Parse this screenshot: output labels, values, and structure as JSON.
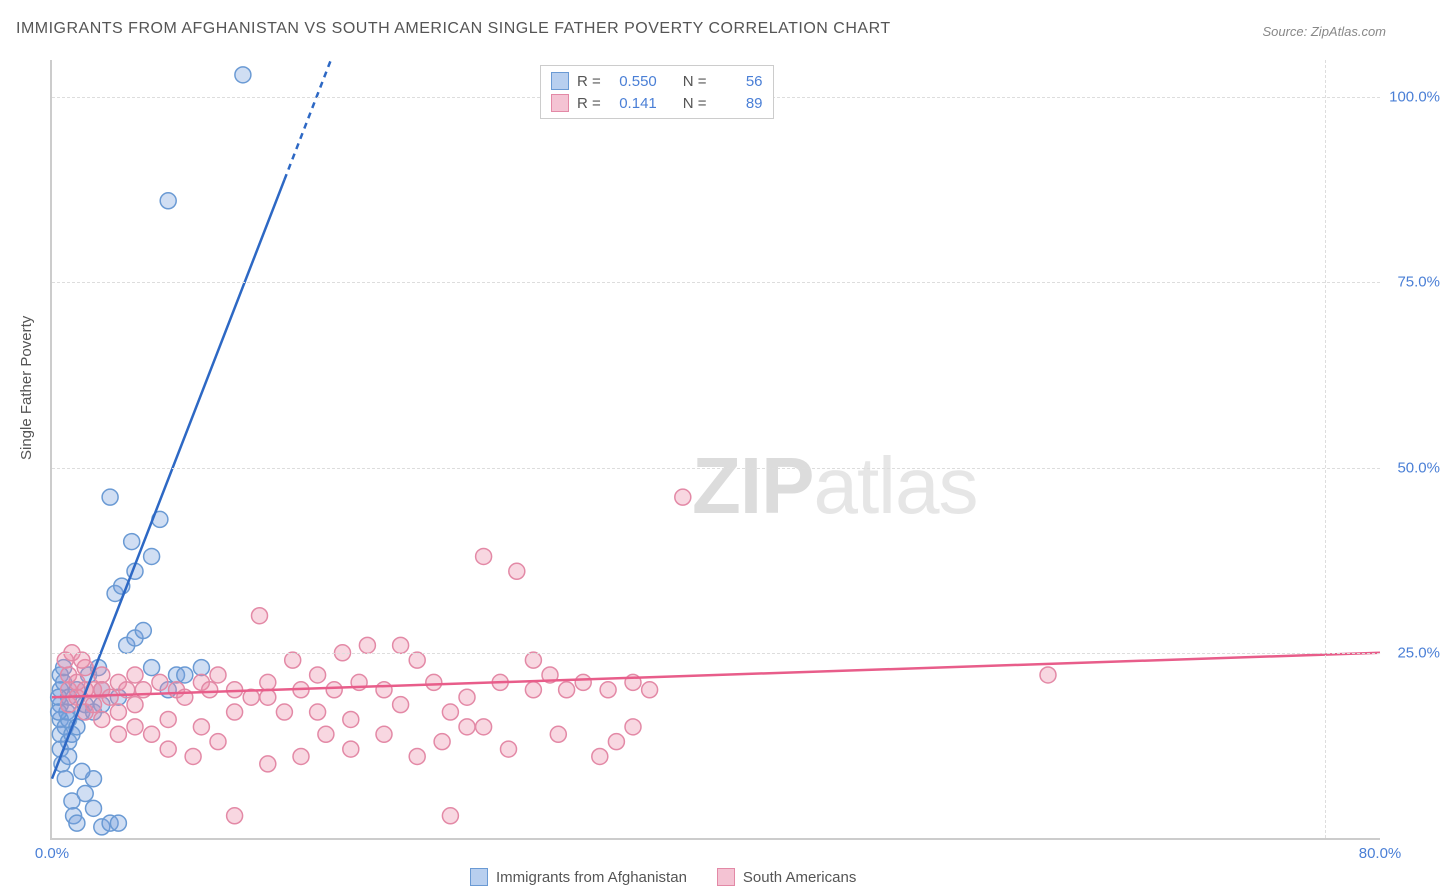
{
  "title": "IMMIGRANTS FROM AFGHANISTAN VS SOUTH AMERICAN SINGLE FATHER POVERTY CORRELATION CHART",
  "source": "Source: ZipAtlas.com",
  "y_axis_label": "Single Father Poverty",
  "watermark_a": "ZIP",
  "watermark_b": "atlas",
  "chart": {
    "type": "scatter",
    "xlim": [
      0,
      80
    ],
    "ylim": [
      0,
      105
    ],
    "x_ticks": [
      0,
      80
    ],
    "x_tick_labels": [
      "0.0%",
      "80.0%"
    ],
    "y_ticks": [
      25,
      50,
      75,
      100
    ],
    "y_tick_labels": [
      "25.0%",
      "50.0%",
      "75.0%",
      "100.0%"
    ],
    "grid_color": "#dddddd",
    "axis_color": "#cccccc",
    "background_color": "#ffffff",
    "tick_label_color": "#4a7fd6",
    "tick_fontsize": 15,
    "marker_radius": 8,
    "marker_stroke_width": 1.5,
    "line_width": 2.5
  },
  "series": [
    {
      "name": "Immigrants from Afghanistan",
      "fill_color": "rgba(120,160,220,0.35)",
      "stroke_color": "#6a9ad4",
      "line_color": "#2d68c4",
      "swatch_fill": "#b8cfef",
      "swatch_stroke": "#6a9ad4",
      "R": "0.550",
      "N": "56",
      "trend": {
        "x1": 0,
        "y1": 8,
        "x2": 16.8,
        "y2": 105,
        "dash_from_x": 14
      },
      "points": [
        [
          0.5,
          18
        ],
        [
          0.5,
          16
        ],
        [
          0.5,
          14
        ],
        [
          0.5,
          12
        ],
        [
          0.5,
          20
        ],
        [
          0.5,
          22
        ],
        [
          0.6,
          10
        ],
        [
          0.8,
          8
        ],
        [
          0.8,
          15
        ],
        [
          0.9,
          17
        ],
        [
          1,
          19
        ],
        [
          1,
          13
        ],
        [
          1,
          11
        ],
        [
          1,
          16
        ],
        [
          1.2,
          5
        ],
        [
          1.3,
          3
        ],
        [
          1.5,
          2
        ],
        [
          1.5,
          20
        ],
        [
          1.8,
          17
        ],
        [
          2,
          18
        ],
        [
          2,
          6
        ],
        [
          2.2,
          22
        ],
        [
          2.5,
          4
        ],
        [
          2.5,
          17
        ],
        [
          2.8,
          23
        ],
        [
          3,
          20
        ],
        [
          3,
          18
        ],
        [
          3,
          1.5
        ],
        [
          3.5,
          2
        ],
        [
          3.5,
          46
        ],
        [
          4,
          2
        ],
        [
          4,
          19
        ],
        [
          4.5,
          26
        ],
        [
          4.8,
          40
        ],
        [
          5,
          27
        ],
        [
          5,
          36
        ],
        [
          5.5,
          28
        ],
        [
          6,
          38
        ],
        [
          6,
          23
        ],
        [
          6.5,
          43
        ],
        [
          7,
          20
        ],
        [
          7,
          86
        ],
        [
          7.5,
          22
        ],
        [
          8,
          22
        ],
        [
          9,
          23
        ],
        [
          11.5,
          103
        ],
        [
          2.5,
          8
        ],
        [
          1.8,
          9
        ],
        [
          1.2,
          14
        ],
        [
          1.5,
          15
        ],
        [
          0.7,
          21
        ],
        [
          0.7,
          23
        ],
        [
          0.4,
          19
        ],
        [
          0.4,
          17
        ],
        [
          3.8,
          33
        ],
        [
          4.2,
          34
        ]
      ]
    },
    {
      "name": "South Americans",
      "fill_color": "rgba(235,140,170,0.35)",
      "stroke_color": "#e389a6",
      "line_color": "#e85d8a",
      "swatch_fill": "#f4c3d3",
      "swatch_stroke": "#e389a6",
      "R": "0.141",
      "N": "89",
      "trend": {
        "x1": 0,
        "y1": 19,
        "x2": 80,
        "y2": 25
      },
      "points": [
        [
          1,
          20
        ],
        [
          1,
          18
        ],
        [
          1,
          22
        ],
        [
          1.5,
          19
        ],
        [
          1.5,
          21
        ],
        [
          2,
          20
        ],
        [
          2,
          23
        ],
        [
          2,
          17
        ],
        [
          2.5,
          20
        ],
        [
          2.5,
          18
        ],
        [
          3,
          20
        ],
        [
          3,
          22
        ],
        [
          3.5,
          19
        ],
        [
          4,
          21
        ],
        [
          4,
          17
        ],
        [
          4.5,
          20
        ],
        [
          5,
          22
        ],
        [
          5,
          18
        ],
        [
          5.5,
          20
        ],
        [
          6,
          14
        ],
        [
          6.5,
          21
        ],
        [
          7,
          12
        ],
        [
          7.5,
          20
        ],
        [
          8,
          19
        ],
        [
          8.5,
          11
        ],
        [
          9,
          21
        ],
        [
          9.5,
          20
        ],
        [
          10,
          13
        ],
        [
          10,
          22
        ],
        [
          11,
          20
        ],
        [
          11,
          3
        ],
        [
          12,
          19
        ],
        [
          12.5,
          30
        ],
        [
          13,
          21
        ],
        [
          13,
          10
        ],
        [
          14,
          17
        ],
        [
          14.5,
          24
        ],
        [
          15,
          20
        ],
        [
          15,
          11
        ],
        [
          16,
          22
        ],
        [
          16.5,
          14
        ],
        [
          17,
          20
        ],
        [
          17.5,
          25
        ],
        [
          18,
          12
        ],
        [
          18.5,
          21
        ],
        [
          19,
          26
        ],
        [
          20,
          20
        ],
        [
          20,
          14
        ],
        [
          21,
          26
        ],
        [
          21,
          18
        ],
        [
          22,
          11
        ],
        [
          22,
          24
        ],
        [
          23,
          21
        ],
        [
          23.5,
          13
        ],
        [
          24,
          3
        ],
        [
          25,
          19
        ],
        [
          25,
          15
        ],
        [
          26,
          38
        ],
        [
          27,
          21
        ],
        [
          27.5,
          12
        ],
        [
          28,
          36
        ],
        [
          29,
          20
        ],
        [
          29,
          24
        ],
        [
          30,
          22
        ],
        [
          30.5,
          14
        ],
        [
          31,
          20
        ],
        [
          32,
          21
        ],
        [
          33,
          11
        ],
        [
          33.5,
          20
        ],
        [
          34,
          13
        ],
        [
          35,
          21
        ],
        [
          35,
          15
        ],
        [
          36,
          20
        ],
        [
          38,
          46
        ],
        [
          60,
          22
        ],
        [
          3,
          16
        ],
        [
          4,
          14
        ],
        [
          5,
          15
        ],
        [
          7,
          16
        ],
        [
          9,
          15
        ],
        [
          11,
          17
        ],
        [
          13,
          19
        ],
        [
          16,
          17
        ],
        [
          18,
          16
        ],
        [
          24,
          17
        ],
        [
          26,
          15
        ],
        [
          0.8,
          24
        ],
        [
          1.2,
          25
        ],
        [
          1.8,
          24
        ]
      ]
    }
  ],
  "legend_top": {
    "r_label": "R =",
    "n_label": "N ="
  },
  "legend_bottom_labels": [
    "Immigrants from Afghanistan",
    "South Americans"
  ]
}
